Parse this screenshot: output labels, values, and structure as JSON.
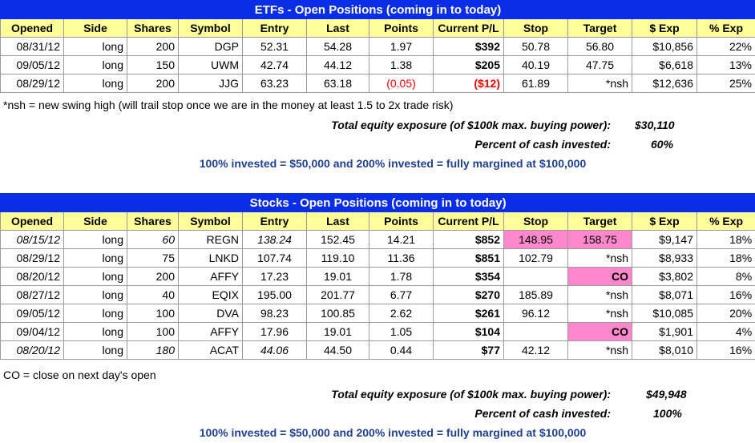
{
  "etf": {
    "title": "ETFs - Open Positions (coming in to today)",
    "headers": [
      "Opened",
      "Side",
      "Shares",
      "Symbol",
      "Entry",
      "Last",
      "Points",
      "Current P/L",
      "Stop",
      "Target",
      "$ Exp",
      "% Exp"
    ],
    "rows": [
      {
        "opened": "08/31/12",
        "side": "long",
        "shares": "200",
        "symbol": "DGP",
        "entry": "52.31",
        "last": "54.28",
        "points": "1.97",
        "pl": "$392",
        "stop": "50.78",
        "target": "56.80",
        "exp": "$10,856",
        "pexp": "22%"
      },
      {
        "opened": "09/05/12",
        "side": "long",
        "shares": "150",
        "symbol": "UWM",
        "entry": "42.74",
        "last": "44.12",
        "points": "1.38",
        "pl": "$205",
        "stop": "40.19",
        "target": "47.75",
        "exp": "$6,618",
        "pexp": "13%"
      },
      {
        "opened": "08/29/12",
        "side": "long",
        "shares": "200",
        "symbol": "JJG",
        "entry": "63.23",
        "last": "63.18",
        "points": "(0.05)",
        "pl": "($12)",
        "stop": "61.89",
        "target": "*nsh",
        "exp": "$12,636",
        "pexp": "25%"
      }
    ],
    "footnote": "*nsh = new swing high (will trail stop once we are in the money at least 1.5 to 2x trade risk)",
    "total_label": "Total equity exposure (of $100k max. buying power):",
    "total_value": "$30,110",
    "pct_label": "Percent of cash invested:",
    "pct_value": "60%",
    "invested_note": "100% invested = $50,000 and 200% invested = fully margined at $100,000"
  },
  "stocks": {
    "title": "Stocks - Open Positions (coming in to today)",
    "headers": [
      "Opened",
      "Side",
      "Shares",
      "Symbol",
      "Entry",
      "Last",
      "Points",
      "Current P/L",
      "Stop",
      "Target",
      "$ Exp",
      "% Exp"
    ],
    "rows": [
      {
        "opened": "08/15/12",
        "side": "long",
        "shares": "60",
        "symbol": "REGN",
        "entry": "138.24",
        "last": "152.45",
        "points": "14.21",
        "pl": "$852",
        "stop": "148.95",
        "target": "158.75",
        "exp": "$9,147",
        "pexp": "18%"
      },
      {
        "opened": "08/29/12",
        "side": "long",
        "shares": "75",
        "symbol": "LNKD",
        "entry": "107.74",
        "last": "119.10",
        "points": "11.36",
        "pl": "$851",
        "stop": "102.79",
        "target": "*nsh",
        "exp": "$8,933",
        "pexp": "18%"
      },
      {
        "opened": "08/20/12",
        "side": "long",
        "shares": "200",
        "symbol": "AFFY",
        "entry": "17.23",
        "last": "19.01",
        "points": "1.78",
        "pl": "$354",
        "stop": "",
        "target": "CO",
        "exp": "$3,802",
        "pexp": "8%"
      },
      {
        "opened": "08/27/12",
        "side": "long",
        "shares": "40",
        "symbol": "EQIX",
        "entry": "195.00",
        "last": "201.77",
        "points": "6.77",
        "pl": "$270",
        "stop": "185.89",
        "target": "*nsh",
        "exp": "$8,071",
        "pexp": "16%"
      },
      {
        "opened": "09/05/12",
        "side": "long",
        "shares": "100",
        "symbol": "DVA",
        "entry": "98.23",
        "last": "100.85",
        "points": "2.62",
        "pl": "$261",
        "stop": "96.12",
        "target": "*nsh",
        "exp": "$10,085",
        "pexp": "20%"
      },
      {
        "opened": "09/04/12",
        "side": "long",
        "shares": "100",
        "symbol": "AFFY",
        "entry": "17.96",
        "last": "19.01",
        "points": "1.05",
        "pl": "$104",
        "stop": "",
        "target": "CO",
        "exp": "$1,901",
        "pexp": "4%"
      },
      {
        "opened": "08/20/12",
        "side": "long",
        "shares": "180",
        "symbol": "ACAT",
        "entry": "44.06",
        "last": "44.50",
        "points": "0.44",
        "pl": "$77",
        "stop": "42.12",
        "target": "*nsh",
        "exp": "$8,010",
        "pexp": "16%"
      }
    ],
    "footnote": "CO = close on next day's open",
    "total_label": "Total equity exposure (of $100k max. buying power):",
    "total_value": "$49,948",
    "pct_label": "Percent of cash invested:",
    "pct_value": "100%",
    "invested_note": "100% invested = $50,000 and 200% invested = fully margined at $100,000"
  },
  "colors": {
    "title_bg": "#0a2ee8",
    "header_bg": "#ffff99",
    "highlight": "#ff88cc",
    "loss_red": "#ff0000",
    "note_blue": "#1f3f8f"
  }
}
